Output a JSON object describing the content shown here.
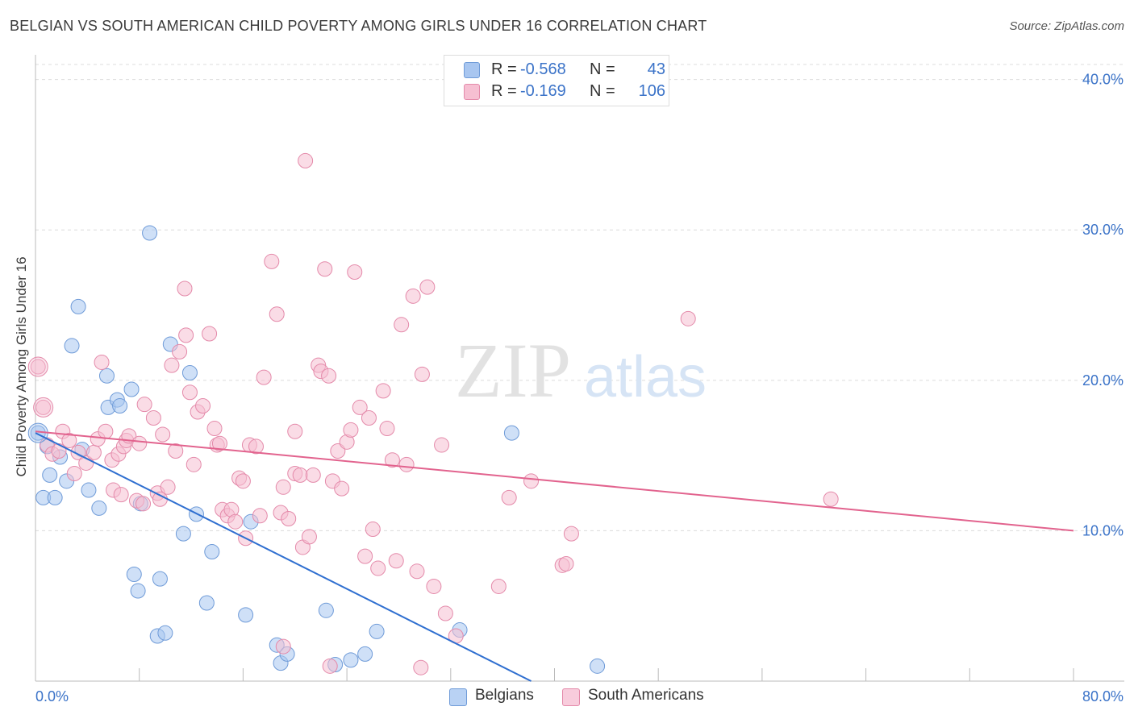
{
  "title": "BELGIAN VS SOUTH AMERICAN CHILD POVERTY AMONG GIRLS UNDER 16 CORRELATION CHART",
  "source": "Source: ZipAtlas.com",
  "watermark": {
    "zip": "ZIP",
    "atlas": "atlas"
  },
  "legend": {
    "rows": [
      {
        "r_label": "R =",
        "r_value": "-0.568",
        "n_label": "N =",
        "n_value": "43",
        "color": "#a8c6f0",
        "stroke": "#6f9bd8"
      },
      {
        "r_label": "R =",
        "r_value": "-0.169",
        "n_label": "N =",
        "n_value": "106",
        "color": "#f6bfd2",
        "stroke": "#e48aaa"
      }
    ]
  },
  "bottom_legend": [
    {
      "label": "Belgians",
      "color": "#b9d2f4",
      "stroke": "#6f9bd8"
    },
    {
      "label": "South Americans",
      "color": "#f8ccdc",
      "stroke": "#e48aaa"
    }
  ],
  "chart_data": {
    "type": "scatter",
    "title": "BELGIAN VS SOUTH AMERICAN CHILD POVERTY AMONG GIRLS UNDER 16 CORRELATION CHART",
    "xlabel": "",
    "ylabel": "Child Poverty Among Girls Under 16",
    "xlim": [
      0,
      80
    ],
    "ylim": [
      0,
      41
    ],
    "x_tick_labels": [
      {
        "value": 0,
        "label": "0.0%"
      },
      {
        "value": 80,
        "label": "80.0%"
      }
    ],
    "y_tick_labels": [
      {
        "value": 10,
        "label": "10.0%"
      },
      {
        "value": 20,
        "label": "20.0%"
      },
      {
        "value": 30,
        "label": "30.0%"
      },
      {
        "value": 40,
        "label": "40.0%"
      }
    ],
    "x_minor_ticks": [
      0,
      8,
      16,
      24,
      32,
      40,
      48,
      56,
      64,
      72,
      80
    ],
    "grid": "horizontal dashed",
    "series": [
      {
        "name": "Belgians",
        "color": "#a8c6f0",
        "stroke": "#6f9bd8",
        "line_color": "#2f6fd0",
        "trend": {
          "x": [
            0,
            38.2
          ],
          "y": [
            16.5,
            0
          ]
        },
        "points": [
          [
            0.2,
            16.5
          ],
          [
            0.6,
            12.2
          ],
          [
            1.1,
            13.7
          ],
          [
            1.5,
            12.2
          ],
          [
            1.9,
            14.9
          ],
          [
            2.4,
            13.3
          ],
          [
            2.8,
            22.3
          ],
          [
            3.3,
            24.9
          ],
          [
            3.6,
            15.4
          ],
          [
            4.1,
            12.7
          ],
          [
            4.9,
            11.5
          ],
          [
            5.6,
            18.2
          ],
          [
            5.5,
            20.3
          ],
          [
            6.3,
            18.7
          ],
          [
            6.5,
            18.3
          ],
          [
            7.4,
            19.4
          ],
          [
            8.1,
            11.8
          ],
          [
            7.6,
            7.1
          ],
          [
            7.9,
            6.0
          ],
          [
            8.8,
            29.8
          ],
          [
            9.4,
            3.0
          ],
          [
            9.6,
            6.8
          ],
          [
            10.0,
            3.2
          ],
          [
            10.4,
            22.4
          ],
          [
            11.4,
            9.8
          ],
          [
            11.9,
            20.5
          ],
          [
            12.4,
            11.1
          ],
          [
            13.2,
            5.2
          ],
          [
            13.6,
            8.6
          ],
          [
            16.2,
            4.4
          ],
          [
            16.6,
            10.6
          ],
          [
            18.6,
            2.4
          ],
          [
            18.9,
            1.2
          ],
          [
            19.4,
            1.8
          ],
          [
            22.4,
            4.7
          ],
          [
            23.1,
            1.1
          ],
          [
            24.3,
            1.4
          ],
          [
            25.4,
            1.8
          ],
          [
            26.3,
            3.3
          ],
          [
            32.7,
            3.4
          ],
          [
            36.7,
            16.5
          ],
          [
            43.3,
            1.0
          ],
          [
            0.9,
            15.6
          ]
        ]
      },
      {
        "name": "South Americans",
        "color": "#f6bfd2",
        "stroke": "#e48aaa",
        "line_color": "#e2638e",
        "trend": {
          "x": [
            0,
            80
          ],
          "y": [
            16.6,
            10.0
          ]
        },
        "points": [
          [
            0.2,
            20.9
          ],
          [
            0.6,
            18.2
          ],
          [
            0.9,
            15.7
          ],
          [
            1.3,
            15.1
          ],
          [
            1.8,
            15.3
          ],
          [
            2.1,
            16.6
          ],
          [
            2.6,
            16.0
          ],
          [
            3.0,
            13.8
          ],
          [
            3.3,
            15.2
          ],
          [
            3.9,
            14.5
          ],
          [
            4.5,
            15.2
          ],
          [
            4.8,
            16.1
          ],
          [
            5.1,
            21.2
          ],
          [
            5.4,
            16.6
          ],
          [
            5.9,
            14.7
          ],
          [
            6.0,
            12.7
          ],
          [
            6.4,
            15.1
          ],
          [
            6.8,
            15.6
          ],
          [
            7.0,
            16.0
          ],
          [
            7.2,
            16.3
          ],
          [
            7.8,
            12.0
          ],
          [
            8.0,
            15.8
          ],
          [
            8.3,
            11.8
          ],
          [
            8.4,
            18.4
          ],
          [
            9.1,
            17.5
          ],
          [
            9.4,
            12.5
          ],
          [
            9.6,
            12.1
          ],
          [
            9.8,
            16.4
          ],
          [
            10.2,
            12.9
          ],
          [
            10.5,
            21.0
          ],
          [
            10.8,
            15.3
          ],
          [
            11.1,
            21.9
          ],
          [
            11.5,
            26.1
          ],
          [
            11.6,
            23.0
          ],
          [
            11.9,
            19.2
          ],
          [
            12.2,
            14.4
          ],
          [
            12.5,
            17.9
          ],
          [
            12.9,
            18.3
          ],
          [
            13.4,
            23.1
          ],
          [
            13.8,
            16.8
          ],
          [
            14.0,
            15.7
          ],
          [
            14.4,
            11.4
          ],
          [
            14.8,
            11.0
          ],
          [
            15.1,
            11.4
          ],
          [
            15.4,
            10.6
          ],
          [
            15.7,
            13.5
          ],
          [
            16.0,
            13.3
          ],
          [
            16.2,
            9.5
          ],
          [
            16.5,
            15.7
          ],
          [
            17.0,
            15.6
          ],
          [
            17.3,
            11.0
          ],
          [
            17.6,
            20.2
          ],
          [
            18.2,
            27.9
          ],
          [
            18.6,
            24.4
          ],
          [
            18.9,
            11.2
          ],
          [
            19.1,
            12.9
          ],
          [
            19.5,
            10.8
          ],
          [
            20.0,
            13.8
          ],
          [
            20.4,
            13.7
          ],
          [
            20.6,
            8.9
          ],
          [
            20.8,
            34.6
          ],
          [
            21.1,
            9.6
          ],
          [
            21.4,
            13.7
          ],
          [
            21.8,
            21.0
          ],
          [
            22.0,
            20.6
          ],
          [
            22.3,
            27.4
          ],
          [
            22.6,
            20.3
          ],
          [
            22.9,
            13.3
          ],
          [
            23.3,
            15.3
          ],
          [
            23.6,
            12.8
          ],
          [
            24.0,
            15.9
          ],
          [
            24.3,
            16.7
          ],
          [
            24.6,
            27.2
          ],
          [
            25.0,
            18.2
          ],
          [
            25.4,
            8.3
          ],
          [
            25.7,
            17.5
          ],
          [
            26.0,
            10.1
          ],
          [
            26.4,
            7.5
          ],
          [
            26.8,
            19.3
          ],
          [
            27.1,
            16.8
          ],
          [
            27.5,
            14.7
          ],
          [
            27.8,
            8.0
          ],
          [
            28.2,
            23.7
          ],
          [
            28.6,
            14.4
          ],
          [
            29.1,
            25.6
          ],
          [
            29.4,
            7.3
          ],
          [
            29.8,
            20.4
          ],
          [
            30.2,
            26.2
          ],
          [
            30.7,
            6.3
          ],
          [
            31.3,
            15.7
          ],
          [
            31.6,
            4.5
          ],
          [
            32.4,
            3.0
          ],
          [
            22.7,
            1.0
          ],
          [
            19.1,
            2.3
          ],
          [
            35.7,
            6.3
          ],
          [
            36.5,
            12.2
          ],
          [
            38.2,
            13.3
          ],
          [
            40.6,
            7.7
          ],
          [
            40.9,
            7.8
          ],
          [
            41.3,
            9.8
          ],
          [
            50.3,
            24.1
          ],
          [
            61.3,
            12.1
          ],
          [
            29.7,
            0.9
          ],
          [
            14.2,
            15.8
          ],
          [
            20.0,
            16.6
          ],
          [
            6.6,
            12.4
          ]
        ]
      }
    ]
  }
}
